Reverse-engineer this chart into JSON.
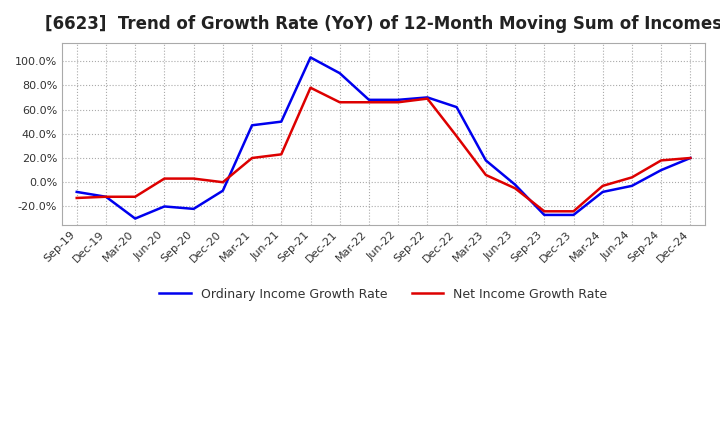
{
  "title": "[6623]  Trend of Growth Rate (YoY) of 12-Month Moving Sum of Incomes",
  "title_fontsize": 12,
  "ylim": [
    -35,
    115
  ],
  "yticks": [
    -20.0,
    0.0,
    20.0,
    40.0,
    60.0,
    80.0,
    100.0
  ],
  "grid_color": "#aaaaaa",
  "background_color": "#ffffff",
  "line_color_ordinary": "#0000ee",
  "line_color_net": "#dd0000",
  "legend_ordinary": "Ordinary Income Growth Rate",
  "legend_net": "Net Income Growth Rate",
  "x_labels": [
    "Sep-19",
    "Dec-19",
    "Mar-20",
    "Jun-20",
    "Sep-20",
    "Dec-20",
    "Mar-21",
    "Jun-21",
    "Sep-21",
    "Dec-21",
    "Mar-22",
    "Jun-22",
    "Sep-22",
    "Dec-22",
    "Mar-23",
    "Jun-23",
    "Sep-23",
    "Dec-23",
    "Mar-24",
    "Jun-24",
    "Sep-24",
    "Dec-24"
  ],
  "ordinary_income_growth": [
    -8.0,
    -12.0,
    -30.0,
    -20.0,
    -22.0,
    -7.0,
    47.0,
    50.0,
    103.0,
    90.0,
    68.0,
    68.0,
    70.0,
    62.0,
    18.0,
    -2.0,
    -27.0,
    -27.0,
    -8.0,
    -3.0,
    10.0,
    20.0
  ],
  "net_income_growth": [
    -13.0,
    -12.0,
    -12.0,
    3.0,
    3.0,
    0.0,
    20.0,
    23.0,
    78.0,
    66.0,
    66.0,
    66.0,
    69.0,
    38.0,
    6.0,
    -5.0,
    -24.0,
    -24.0,
    -3.0,
    4.0,
    18.0,
    20.0
  ]
}
